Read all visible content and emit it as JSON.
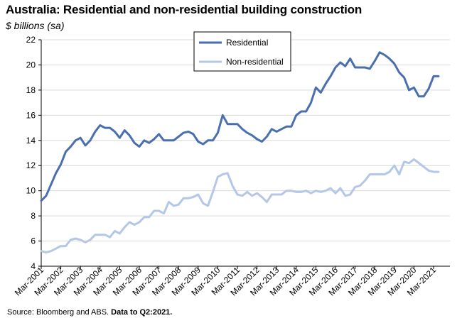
{
  "title": "Australia: Residential and non-residential building construction",
  "subtitle": "$ billions (sa)",
  "source": {
    "text": "Source: Bloomberg and ABS.",
    "note": "Data to Q2:2021."
  },
  "chart_data": {
    "type": "line",
    "ylim": [
      4,
      22
    ],
    "yticks": [
      4,
      6,
      8,
      10,
      12,
      14,
      16,
      18,
      20,
      22
    ],
    "xtick_labels": [
      "Mar-2001",
      "Mar-2002",
      "Mar-2003",
      "Mar-2004",
      "Mar-2005",
      "Mar-2006",
      "Mar-2007",
      "Mar-2008",
      "Mar-2009",
      "Mar-2010",
      "Mar-2011",
      "Mar-2012",
      "Mar-2013",
      "Mar-2014",
      "Mar-2015",
      "Mar-2016",
      "Mar-2017",
      "Mar-2018",
      "Mar-2019",
      "Mar-2020",
      "Mar-2021"
    ],
    "x_start": "Mar-2001",
    "x_end": "Jun-2021",
    "grid": "horizontal",
    "legend": "top-center",
    "series": [
      {
        "name": "Residential",
        "color": "#4a6fae",
        "values": [
          9.2,
          9.6,
          10.5,
          11.4,
          12.1,
          13.1,
          13.5,
          14.0,
          14.2,
          13.6,
          14.0,
          14.7,
          15.2,
          15.0,
          15.0,
          14.7,
          14.2,
          14.8,
          14.4,
          13.8,
          13.5,
          14.0,
          13.8,
          14.1,
          14.5,
          14.0,
          14.0,
          14.0,
          14.3,
          14.6,
          14.7,
          14.5,
          13.9,
          13.7,
          14.0,
          14.0,
          14.6,
          16.0,
          15.3,
          15.3,
          15.3,
          14.9,
          14.6,
          14.4,
          14.1,
          13.9,
          14.3,
          14.9,
          14.7,
          14.9,
          15.1,
          15.1,
          16.0,
          16.3,
          16.3,
          17.0,
          18.2,
          17.8,
          18.5,
          19.1,
          19.8,
          20.2,
          19.9,
          20.5,
          19.8,
          19.8,
          19.8,
          19.7,
          20.3,
          21.0,
          20.8,
          20.5,
          20.1,
          19.4,
          19.0,
          18.0,
          18.2,
          17.5,
          17.5,
          18.1,
          19.1,
          19.1
        ]
      },
      {
        "name": "Non-residential",
        "color": "#b4c7e7",
        "values": [
          5.2,
          5.1,
          5.2,
          5.4,
          5.6,
          5.6,
          6.1,
          6.2,
          6.1,
          5.9,
          6.1,
          6.5,
          6.5,
          6.5,
          6.3,
          6.8,
          6.6,
          7.1,
          7.5,
          7.3,
          7.5,
          7.9,
          7.9,
          8.4,
          8.4,
          8.2,
          9.1,
          8.8,
          8.9,
          9.4,
          9.4,
          9.5,
          9.7,
          9.0,
          8.8,
          9.9,
          11.1,
          11.3,
          11.4,
          10.4,
          9.7,
          9.6,
          9.9,
          9.6,
          9.8,
          9.5,
          9.1,
          9.7,
          9.7,
          9.7,
          10.0,
          10.0,
          9.9,
          9.9,
          10.0,
          9.8,
          10.0,
          9.9,
          10.0,
          10.2,
          9.8,
          10.2,
          9.6,
          9.7,
          10.3,
          10.4,
          10.8,
          11.3,
          11.3,
          11.3,
          11.3,
          11.5,
          12.0,
          11.3,
          12.3,
          12.2,
          12.5,
          12.2,
          11.9,
          11.6,
          11.5,
          11.5
        ]
      }
    ]
  }
}
